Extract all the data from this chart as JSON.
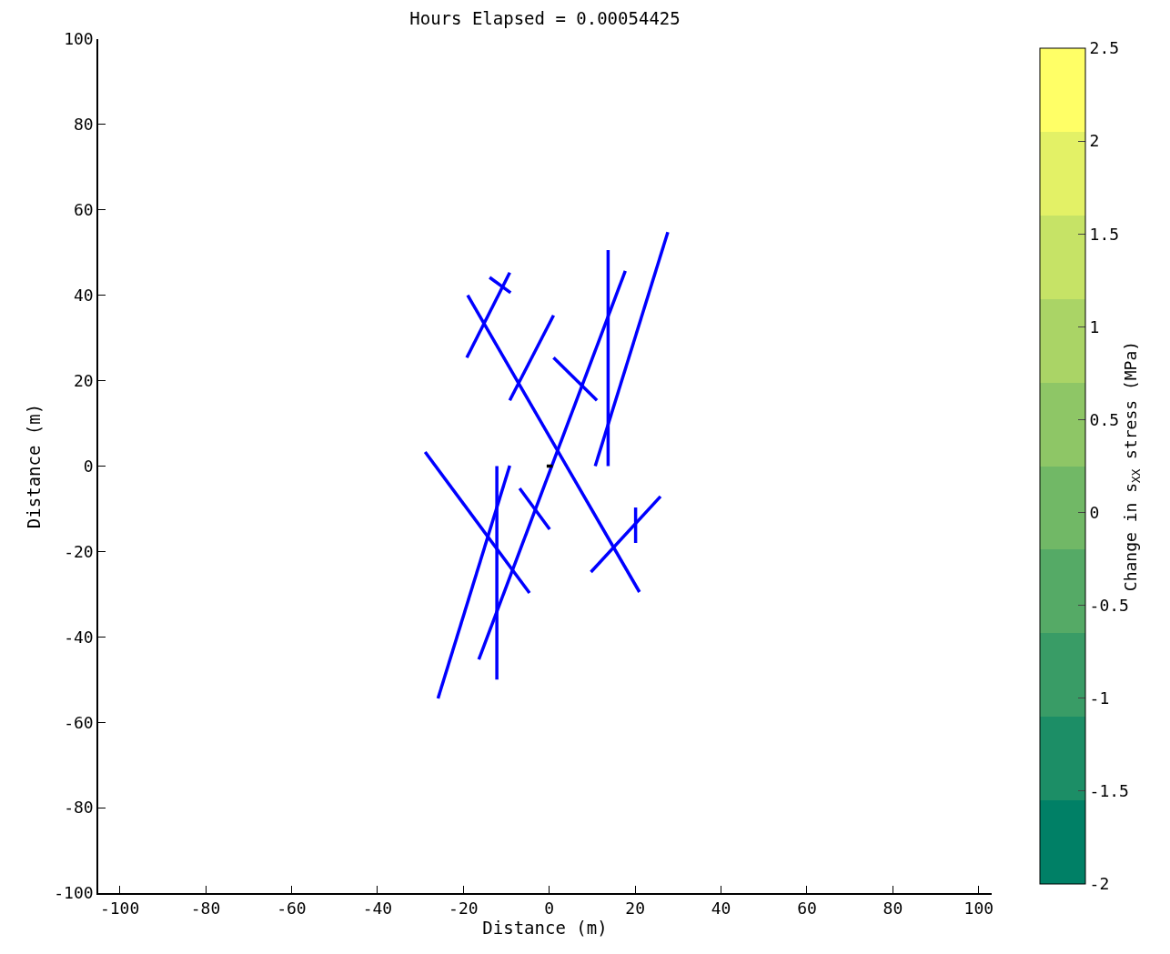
{
  "chart_data": {
    "type": "line",
    "title": "Hours Elapsed = 0.00054425",
    "xlabel": "Distance (m)",
    "ylabel": "Distance (m)",
    "clabel": "Change in s$_{XX}$ stress (MPa)",
    "xlim": [
      -105,
      103
    ],
    "ylim": [
      -100,
      100
    ],
    "xticks": [
      -100,
      -80,
      -60,
      -40,
      -20,
      0,
      20,
      40,
      60,
      80,
      100
    ],
    "yticks": [
      -100,
      -80,
      -60,
      -40,
      -20,
      0,
      20,
      40,
      60,
      80,
      100
    ],
    "clim": [
      -2,
      2.5
    ],
    "cticks": [
      -2,
      -1.5,
      -1,
      -0.5,
      0,
      0.5,
      1,
      1.5,
      2,
      2.5
    ],
    "marker": "none",
    "line_style": "solid",
    "series": [
      {
        "color": "#0000ff",
        "x": [
          -19,
          21
        ],
        "values": [
          40,
          -29.5
        ]
      },
      {
        "color": "#0000ff",
        "x": [
          -19.2,
          -9.2
        ],
        "values": [
          25.4,
          45.3
        ]
      },
      {
        "color": "#0000ff",
        "x": [
          -13.9,
          -9
        ],
        "values": [
          44.2,
          40.6
        ]
      },
      {
        "color": "#0000ff",
        "x": [
          -9.2,
          1
        ],
        "values": [
          15.4,
          35.3
        ]
      },
      {
        "color": "#0000ff",
        "x": [
          1,
          11.1
        ],
        "values": [
          25.4,
          15.4
        ]
      },
      {
        "color": "#0000ff",
        "x": [
          13.7,
          13.7
        ],
        "values": [
          50.6,
          0
        ]
      },
      {
        "color": "#0000ff",
        "x": [
          10.7,
          27.6
        ],
        "values": [
          0,
          54.8
        ]
      },
      {
        "color": "#0000ff",
        "x": [
          -16.4,
          17.7
        ],
        "values": [
          -45.3,
          45.7
        ]
      },
      {
        "color": "#0000ff",
        "x": [
          -28.9,
          -4.6
        ],
        "values": [
          3.3,
          -29.7
        ]
      },
      {
        "color": "#0000ff",
        "x": [
          -12.2,
          -12.2
        ],
        "values": [
          0,
          -50
        ]
      },
      {
        "color": "#0000ff",
        "x": [
          -25.9,
          -9.2
        ],
        "values": [
          -54.4,
          0.1
        ]
      },
      {
        "color": "#0000ff",
        "x": [
          -6.9,
          0.1
        ],
        "values": [
          -5.2,
          -14.8
        ]
      },
      {
        "color": "#0000ff",
        "x": [
          9.7,
          25.9
        ],
        "values": [
          -24.8,
          -7.1
        ]
      },
      {
        "color": "#0000ff",
        "x": [
          20.1,
          20.1
        ],
        "values": [
          -9.7,
          -18
        ]
      },
      {
        "color": "#000000",
        "x": [
          -0.6,
          0.8
        ],
        "values": [
          0,
          0
        ]
      }
    ]
  }
}
